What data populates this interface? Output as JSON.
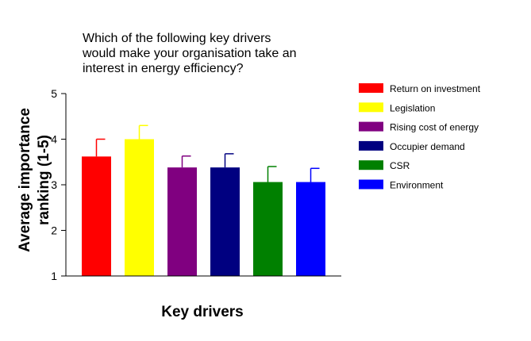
{
  "chart_data": {
    "type": "bar",
    "title": "Which of the following key drivers\nwould make your organisation take an\ninterest in energy efficiency?",
    "xlabel": "Key drivers",
    "ylabel": [
      "Average importance",
      "ranking (1-5)"
    ],
    "ylim": [
      1,
      5
    ],
    "yticks": [
      "1",
      "2",
      "3",
      "4",
      "5"
    ],
    "grid": false,
    "legend_position": "right",
    "series": [
      {
        "name": "Return on investment",
        "value": 3.62,
        "error": 0.38,
        "color": "#ff0000"
      },
      {
        "name": "Legislation",
        "value": 4.0,
        "error": 0.3,
        "color": "#ffff00"
      },
      {
        "name": "Rising cost of energy",
        "value": 3.38,
        "error": 0.25,
        "color": "#800080"
      },
      {
        "name": "Occupier demand",
        "value": 3.38,
        "error": 0.3,
        "color": "#000080"
      },
      {
        "name": "CSR",
        "value": 3.06,
        "error": 0.34,
        "color": "#008000"
      },
      {
        "name": "Environment",
        "value": 3.06,
        "error": 0.3,
        "color": "#0000ff"
      }
    ]
  }
}
